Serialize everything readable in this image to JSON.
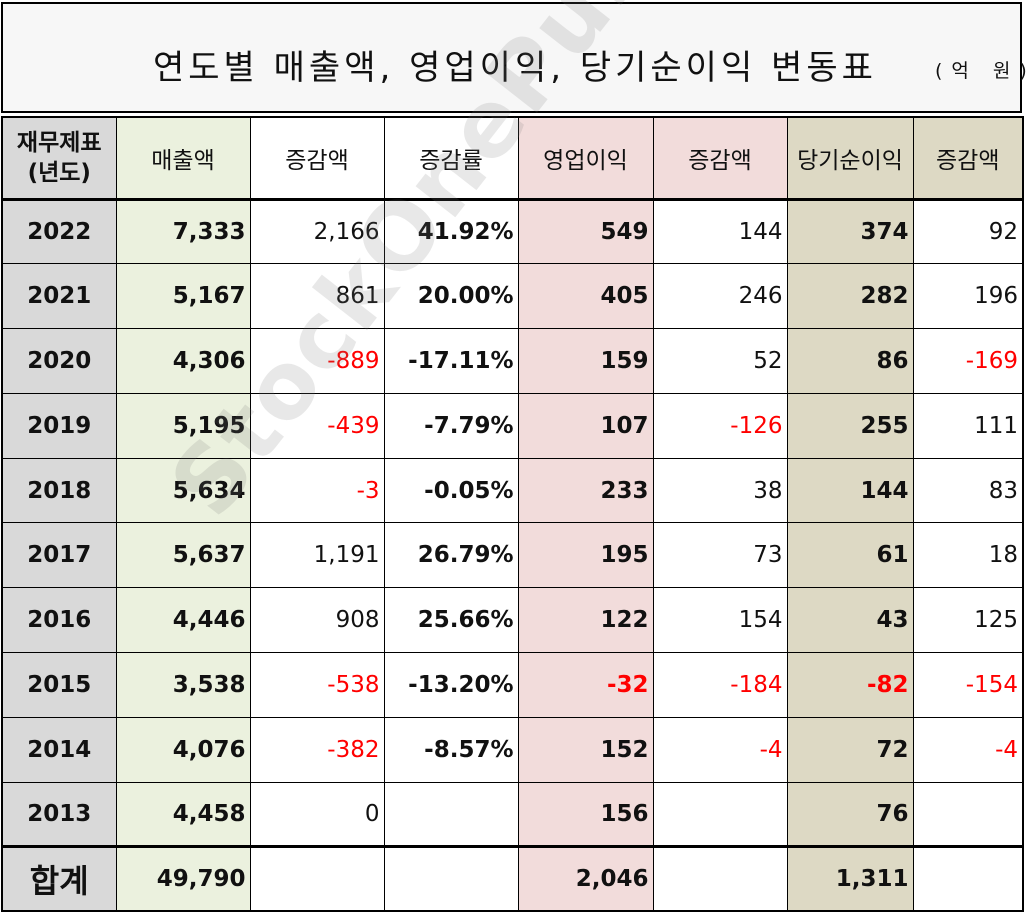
{
  "title": "연도별 매출액, 영업이익, 당기순이익 변동표",
  "unit": "(억 원)",
  "watermark": "StockOnePunch",
  "colors": {
    "year_bg": "#d9d9d9",
    "sales_bg": "#ebf1de",
    "op_bg": "#f2dcdb",
    "net_bg": "#ddd9c4",
    "negative": "#ff0000"
  },
  "headers": {
    "year": "재무제표\n(년도)",
    "sales": "매출액",
    "sales_delta": "증감액",
    "sales_rate": "증감률",
    "op": "영업이익",
    "op_delta": "증감액",
    "net": "당기순이익",
    "net_delta": "증감액"
  },
  "rows": [
    {
      "year": "2022",
      "sales": "7,333",
      "sales_delta": "2,166",
      "sales_rate": "41.92%",
      "op": "549",
      "op_delta": "144",
      "net": "374",
      "net_delta": "92"
    },
    {
      "year": "2021",
      "sales": "5,167",
      "sales_delta": "861",
      "sales_rate": "20.00%",
      "op": "405",
      "op_delta": "246",
      "net": "282",
      "net_delta": "196"
    },
    {
      "year": "2020",
      "sales": "4,306",
      "sales_delta": "-889",
      "sales_rate": "-17.11%",
      "op": "159",
      "op_delta": "52",
      "net": "86",
      "net_delta": "-169"
    },
    {
      "year": "2019",
      "sales": "5,195",
      "sales_delta": "-439",
      "sales_rate": "-7.79%",
      "op": "107",
      "op_delta": "-126",
      "net": "255",
      "net_delta": "111"
    },
    {
      "year": "2018",
      "sales": "5,634",
      "sales_delta": "-3",
      "sales_rate": "-0.05%",
      "op": "233",
      "op_delta": "38",
      "net": "144",
      "net_delta": "83"
    },
    {
      "year": "2017",
      "sales": "5,637",
      "sales_delta": "1,191",
      "sales_rate": "26.79%",
      "op": "195",
      "op_delta": "73",
      "net": "61",
      "net_delta": "18"
    },
    {
      "year": "2016",
      "sales": "4,446",
      "sales_delta": "908",
      "sales_rate": "25.66%",
      "op": "122",
      "op_delta": "154",
      "net": "43",
      "net_delta": "125"
    },
    {
      "year": "2015",
      "sales": "3,538",
      "sales_delta": "-538",
      "sales_rate": "-13.20%",
      "op": "-32",
      "op_delta": "-184",
      "net": "-82",
      "net_delta": "-154"
    },
    {
      "year": "2014",
      "sales": "4,076",
      "sales_delta": "-382",
      "sales_rate": "-8.57%",
      "op": "152",
      "op_delta": "-4",
      "net": "72",
      "net_delta": "-4"
    },
    {
      "year": "2013",
      "sales": "4,458",
      "sales_delta": "0",
      "sales_rate": "",
      "op": "156",
      "op_delta": "",
      "net": "76",
      "net_delta": ""
    }
  ],
  "total": {
    "label": "합계",
    "sales": "49,790",
    "op": "2,046",
    "net": "1,311"
  }
}
